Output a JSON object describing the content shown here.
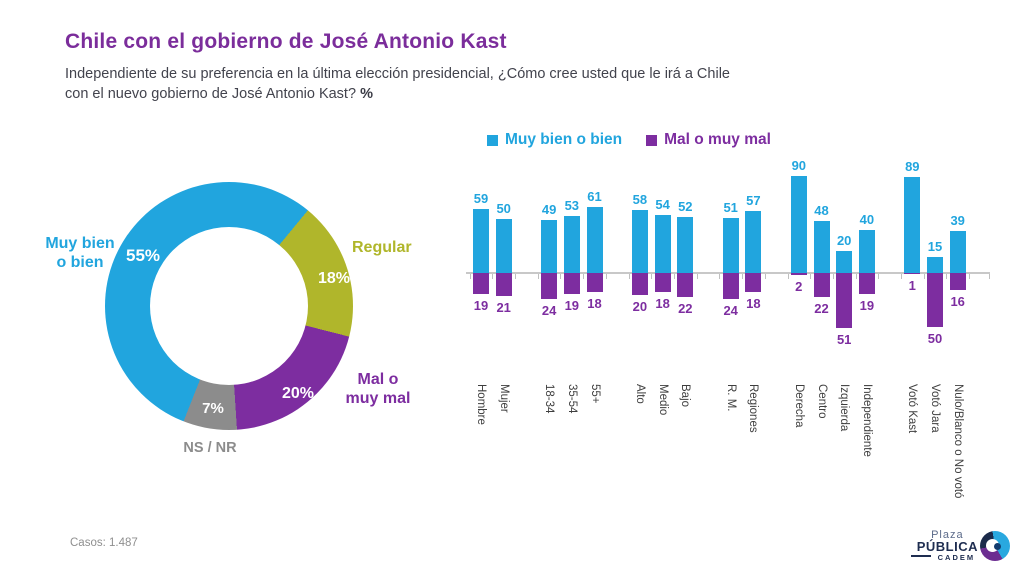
{
  "header": {
    "title": "Chile con el gobierno de José Antonio Kast",
    "subtitle_line1": "Independiente de su preferencia en la última elección presidencial, ¿Cómo cree usted que le irá a Chile",
    "subtitle_line2": "con el nuevo gobierno de José Antonio Kast?",
    "subtitle_pct": "%"
  },
  "colors": {
    "cyan": "#21A5DE",
    "purple": "#7D2DA0",
    "olive": "#B0B62B",
    "gray": "#8C8C8C",
    "title_purple": "#7B2D9B",
    "axis": "#C8C8C8",
    "navy": "#1E2D50"
  },
  "chart_data": [
    {
      "type": "pie",
      "donut": true,
      "labels": [
        "Muy bien o bien",
        "Regular",
        "Mal o muy mal",
        "NS / NR"
      ],
      "values": [
        55,
        18,
        20,
        7
      ],
      "value_labels": [
        "55%",
        "18%",
        "20%",
        "7%"
      ],
      "colors": [
        "#21A5DE",
        "#B0B62B",
        "#7D2DA0",
        "#8C8C8C"
      ],
      "start_deg": 39.5,
      "draw_order": [
        1,
        2,
        3,
        0
      ]
    },
    {
      "type": "bar",
      "legend_position": "top",
      "categories": [
        "Hombre",
        "Mujer",
        "18-34",
        "35-54",
        "55+",
        "Alto",
        "Medio",
        "Bajo",
        "R. M.",
        "Regiones",
        "Derecha",
        "Centro",
        "Izquierda",
        "Independiente",
        "Votó Kast",
        "Votó Jara",
        "Nulo/Blanco o No votó"
      ],
      "slots": [
        0,
        1,
        3,
        4,
        5,
        7,
        8,
        9,
        11,
        12,
        14,
        15,
        16,
        17,
        19,
        20,
        21
      ],
      "series": [
        {
          "name": "Muy bien o bien",
          "color": "#21A5DE",
          "direction": "up",
          "values": [
            59,
            50,
            49,
            53,
            61,
            58,
            54,
            52,
            51,
            57,
            90,
            48,
            20,
            40,
            89,
            15,
            39
          ]
        },
        {
          "name": "Mal o muy mal",
          "color": "#7D2DA0",
          "direction": "down",
          "values": [
            19,
            21,
            24,
            19,
            18,
            20,
            18,
            22,
            24,
            18,
            2,
            22,
            51,
            19,
            1,
            50,
            16
          ]
        }
      ],
      "ylim": [
        0,
        100
      ],
      "grid": false
    }
  ],
  "donut_labels": {
    "muy_bien_line1": "Muy bien",
    "muy_bien_line2": "o bien",
    "muy_bien_pct": "55%",
    "regular": "Regular",
    "regular_pct": "18%",
    "mal_line1": "Mal o",
    "mal_line2": "muy mal",
    "mal_pct": "20%",
    "nsnr": "NS / NR",
    "nsnr_pct": "7%"
  },
  "footer": {
    "cases": "Casos: 1.487",
    "logo": {
      "plaza": "Plaza",
      "publica": "PÚBLICA",
      "cadem": "CADEM"
    }
  }
}
